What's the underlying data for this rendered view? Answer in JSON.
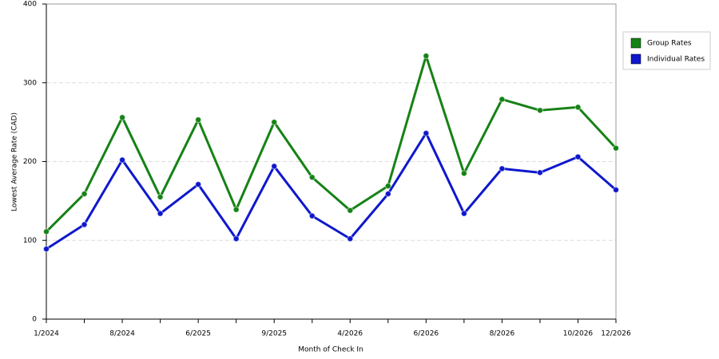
{
  "chart_data": {
    "type": "line",
    "x_label": "Month of Check In",
    "y_label": "Lowest Average Rate (CAD)",
    "categories": [
      "1/2024",
      null,
      "8/2024",
      null,
      "6/2025",
      null,
      "9/2025",
      null,
      "4/2026",
      null,
      "6/2026",
      null,
      "8/2026",
      null,
      "10/2026",
      "12/2026"
    ],
    "series": [
      {
        "name": "Group Rates",
        "color": "#168216",
        "values": [
          111,
          159,
          256,
          155,
          253,
          139,
          250,
          180,
          138,
          169,
          334,
          185,
          279,
          265,
          269,
          217
        ]
      },
      {
        "name": "Individual Rates",
        "color": "#0f18cc",
        "values": [
          89,
          120,
          202,
          134,
          171,
          102,
          194,
          131,
          102,
          159,
          236,
          134,
          191,
          186,
          206,
          164
        ]
      }
    ],
    "ylim": [
      0,
      400
    ],
    "yticks": [
      0,
      100,
      200,
      300,
      400
    ],
    "grid": true,
    "legend": "right"
  }
}
